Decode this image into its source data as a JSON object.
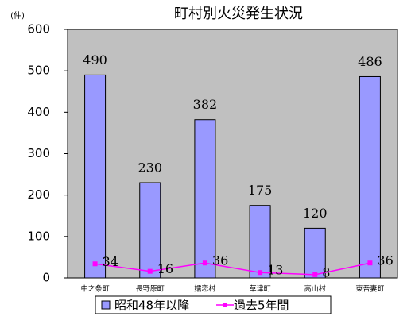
{
  "chart_data": {
    "type": "bar",
    "title": "町村別火災発生状況",
    "y_label": "(件)",
    "categories": [
      "中之条町",
      "長野原町",
      "嬬恋村",
      "草津町",
      "高山村",
      "東吾妻町"
    ],
    "series": [
      {
        "name": "昭和48年以降",
        "type": "bar",
        "color": "#9999ff",
        "values": [
          490,
          230,
          382,
          175,
          120,
          486
        ]
      },
      {
        "name": "過去5年間",
        "type": "line",
        "color": "#ff00ff",
        "values": [
          34,
          16,
          36,
          13,
          8,
          36
        ]
      }
    ],
    "ylim": [
      0,
      600
    ],
    "yticks": [
      0,
      100,
      200,
      300,
      400,
      500,
      600
    ],
    "grid": false,
    "plot_background": "#c0c0c0",
    "legend": "bottom"
  }
}
